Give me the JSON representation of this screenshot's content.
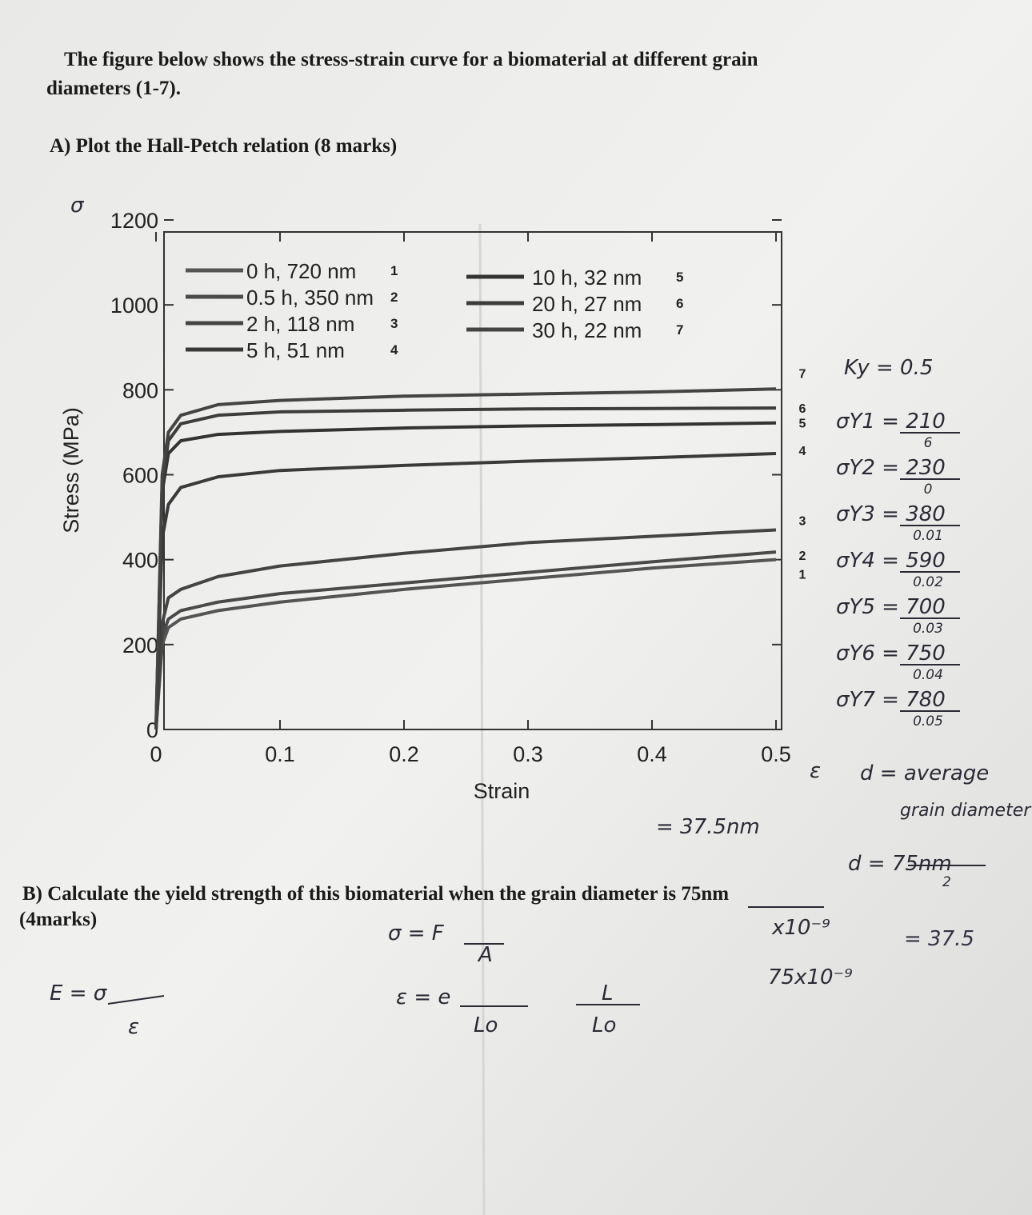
{
  "header": {
    "intro": [
      "The figure below shows the stress-strain curve for a biomaterial at different grain",
      "diameters (1-7)."
    ],
    "part_a": "A) Plot the Hall-Petch relation (8 marks)",
    "part_b": [
      "B) Calculate the yield strength of this biomaterial when the grain diameter is 75nm",
      "(4marks)"
    ]
  },
  "chart_data": {
    "type": "line",
    "x_label": "Strain",
    "y_label": "Stress (MPa)",
    "x": [
      0,
      0.005,
      0.01,
      0.02,
      0.05,
      0.1,
      0.2,
      0.3,
      0.4,
      0.5
    ],
    "xlim": [
      0,
      0.5
    ],
    "xticks": [
      0,
      0.1,
      0.2,
      0.3,
      0.4,
      0.5
    ],
    "ylim": [
      0,
      1200
    ],
    "yticks": [
      0,
      200,
      400,
      600,
      800,
      1000,
      1200
    ],
    "series": [
      {
        "name": "0 h, 720 nm",
        "tag": "1",
        "color": "#555",
        "values": [
          0,
          200,
          240,
          260,
          280,
          300,
          330,
          355,
          380,
          400
        ]
      },
      {
        "name": "0.5 h, 350 nm",
        "tag": "2",
        "color": "#4a4a4a",
        "values": [
          0,
          220,
          260,
          280,
          300,
          320,
          345,
          370,
          395,
          418
        ]
      },
      {
        "name": "2 h, 118 nm",
        "tag": "3",
        "color": "#444",
        "values": [
          0,
          250,
          310,
          330,
          360,
          385,
          415,
          440,
          455,
          470
        ]
      },
      {
        "name": "5 h, 51 nm",
        "tag": "4",
        "color": "#3a3a3a",
        "values": [
          0,
          450,
          530,
          570,
          595,
          610,
          622,
          632,
          640,
          650
        ]
      },
      {
        "name": "10 h, 32 nm",
        "tag": "5",
        "color": "#333",
        "values": [
          0,
          560,
          650,
          680,
          695,
          702,
          710,
          715,
          718,
          722
        ]
      },
      {
        "name": "20 h, 27 nm",
        "tag": "6",
        "color": "#3c3c3c",
        "values": [
          0,
          580,
          680,
          720,
          740,
          748,
          752,
          755,
          756,
          757
        ]
      },
      {
        "name": "30 h, 22 nm",
        "tag": "7",
        "color": "#444",
        "values": [
          0,
          600,
          700,
          740,
          765,
          775,
          785,
          790,
          795,
          802
        ]
      }
    ]
  },
  "handwriting": {
    "sigma_axis": "σ",
    "epsilon_axis": "ε",
    "ky": "Ky = 0.5",
    "yield": [
      {
        "label": "σY1 = 210",
        "under": "6"
      },
      {
        "label": "σY2 = 230",
        "under": "0"
      },
      {
        "label": "σY3 = 380",
        "under": "0.01"
      },
      {
        "label": "σY4 = 590",
        "under": "0.02"
      },
      {
        "label": "σY5 = 700",
        "under": "0.03"
      },
      {
        "label": "σY6 = 750",
        "under": "0.04"
      },
      {
        "label": "σY7 = 780",
        "under": "0.05"
      }
    ],
    "d_def": [
      "d = average",
      "grain diameter"
    ],
    "d_nm": "= 37.5nm",
    "d_calc": "d = 75nm",
    "d_calc_den": "2",
    "d_result": "= 37.5",
    "exp": "x10⁻⁹",
    "exp2": "75x10⁻⁹",
    "stress_eq": "σ = F",
    "stress_den": "A",
    "strain_eq": "ε = e",
    "strain_den": "Lo",
    "strain2": "L",
    "strain2_den": "Lo",
    "modulus": "E = σ",
    "modulus_den": "ε"
  }
}
